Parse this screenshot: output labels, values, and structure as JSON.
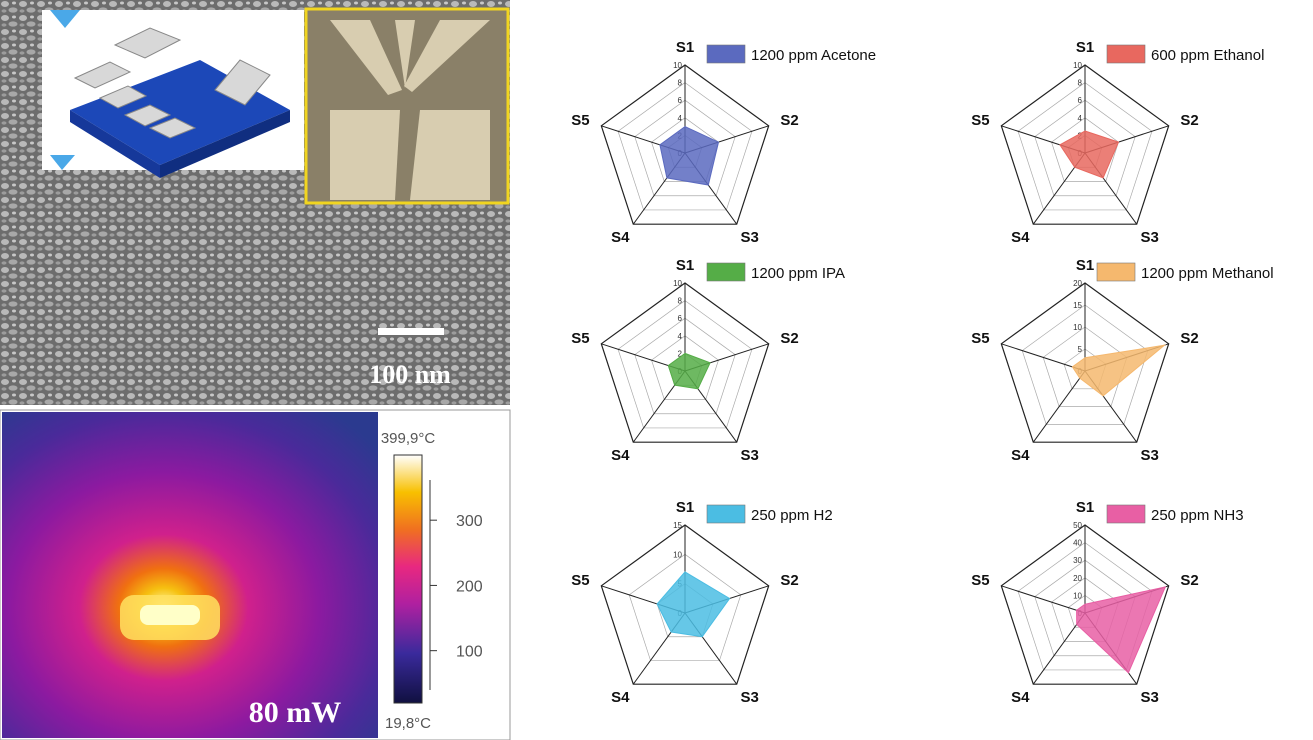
{
  "images": {
    "sem_scale_label": "100 nm",
    "thermal_power_label": "80 mW",
    "colorbar": {
      "range": [
        19.8,
        399.9
      ],
      "max_label": "399,9°C",
      "min_label": "19,8°C",
      "ticks": [
        100,
        200,
        300
      ]
    }
  },
  "chart_data": [
    {
      "type": "radar",
      "categories": [
        "S1",
        "S2",
        "S3",
        "S4",
        "S5"
      ],
      "rlim": [
        0,
        10
      ],
      "rticks": [
        0,
        2,
        4,
        6,
        8,
        10
      ],
      "series": [
        {
          "name": "1200 ppm Acetone",
          "color": "#5b6abf",
          "values": [
            3,
            4,
            4.5,
            3.5,
            3
          ]
        }
      ]
    },
    {
      "type": "radar",
      "categories": [
        "S1",
        "S2",
        "S3",
        "S4",
        "S5"
      ],
      "rlim": [
        0,
        10
      ],
      "rticks": [
        0,
        2,
        4,
        6,
        8,
        10
      ],
      "series": [
        {
          "name": "600 ppm Ethanol",
          "color": "#e8685f",
          "values": [
            2.5,
            4,
            3.5,
            2,
            3
          ]
        }
      ]
    },
    {
      "type": "radar",
      "categories": [
        "S1",
        "S2",
        "S3",
        "S4",
        "S5"
      ],
      "rlim": [
        0,
        10
      ],
      "rticks": [
        0,
        2,
        4,
        6,
        8,
        10
      ],
      "series": [
        {
          "name": "1200 ppm IPA",
          "color": "#55ad47",
          "values": [
            2,
            3,
            2.5,
            2,
            2
          ]
        }
      ]
    },
    {
      "type": "radar",
      "categories": [
        "S1",
        "S2",
        "S3",
        "S4",
        "S5"
      ],
      "rlim": [
        0,
        20
      ],
      "rticks": [
        0,
        5,
        10,
        15,
        20
      ],
      "series": [
        {
          "name": "1200 ppm Methanol",
          "color": "#f5b86e",
          "values": [
            3,
            19,
            7,
            2,
            3
          ]
        }
      ]
    },
    {
      "type": "radar",
      "categories": [
        "S1",
        "S2",
        "S3",
        "S4",
        "S5"
      ],
      "rlim": [
        0,
        15
      ],
      "rticks": [
        0,
        5,
        10,
        15
      ],
      "series": [
        {
          "name": "250 ppm H2",
          "color": "#4bbde3",
          "values": [
            7,
            8,
            5,
            4,
            5
          ]
        }
      ]
    },
    {
      "type": "radar",
      "categories": [
        "S1",
        "S2",
        "S3",
        "S4",
        "S5"
      ],
      "rlim": [
        0,
        50
      ],
      "rticks": [
        0,
        10,
        20,
        30,
        40,
        50
      ],
      "series": [
        {
          "name": "250 ppm NH3",
          "color": "#e85fa4",
          "values": [
            5,
            48,
            42,
            8,
            5
          ]
        }
      ]
    }
  ]
}
